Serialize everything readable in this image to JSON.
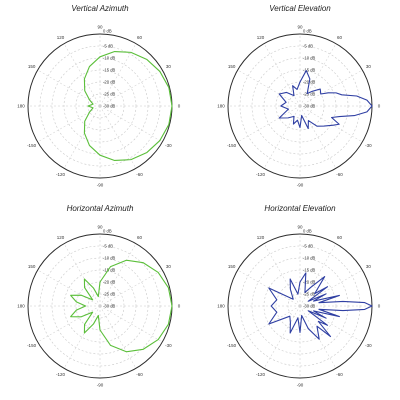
{
  "colors": {
    "azimuth": "#5bbf3a",
    "elevation": "#2f3fa3",
    "grid": "#c8c8c8",
    "outer": "#2a2a2a"
  },
  "ring_labels": [
    "0 dB",
    "-5 dB",
    "-10 dB",
    "-15 dB",
    "-20 dB",
    "-25 dB",
    "-30 dB"
  ],
  "angle_ticks": [
    "0",
    "30",
    "60",
    "90",
    "120",
    "150",
    "180",
    "-150",
    "-120",
    "-90",
    "-60",
    "-30"
  ],
  "chart_data": [
    {
      "type": "polar",
      "title": "Vertical Azimuth",
      "color_key": "azimuth",
      "r_min_db": -30,
      "r_max_db": 0,
      "theta_deg": [
        0,
        15,
        30,
        45,
        60,
        75,
        90,
        105,
        120,
        135,
        150,
        165,
        180,
        -165,
        -150,
        -135,
        -120,
        -105,
        -90,
        -75,
        -60,
        -45,
        -30,
        -15
      ],
      "gain_db": [
        0,
        -0.3,
        -1.2,
        -2.5,
        -4.2,
        -6.5,
        -9.5,
        -13,
        -17,
        -21,
        -25,
        -27,
        -25,
        -27,
        -25,
        -21,
        -17,
        -13,
        -9.5,
        -6.5,
        -4.2,
        -2.5,
        -1.2,
        -0.3
      ]
    },
    {
      "type": "polar",
      "title": "Vertical Elevation",
      "color_key": "elevation",
      "r_min_db": -30,
      "r_max_db": 0,
      "theta_deg": [
        0,
        5,
        10,
        15,
        20,
        25,
        30,
        40,
        50,
        60,
        70,
        80,
        90,
        100,
        110,
        120,
        135,
        150,
        165,
        180,
        -165,
        -150,
        -135,
        -120,
        -110,
        -100,
        -90,
        -80,
        -70,
        -60,
        -50,
        -40,
        -30,
        -25,
        -20,
        -15,
        -10,
        -5
      ],
      "gain_db": [
        0,
        -2,
        -6,
        -12,
        -14,
        -17,
        -20,
        -19,
        -22,
        -24,
        -18,
        -15,
        -20,
        -23,
        -21,
        -25,
        -22,
        -20,
        -24,
        -22,
        -25,
        -20,
        -23,
        -25,
        -22,
        -24,
        -21,
        -26,
        -20,
        -23,
        -19,
        -17,
        -14,
        -12,
        -16,
        -13,
        -7,
        -2
      ]
    },
    {
      "type": "polar",
      "title": "Horizontal Azimuth",
      "color_key": "azimuth",
      "r_min_db": -30,
      "r_max_db": 0,
      "theta_deg": [
        0,
        15,
        30,
        45,
        60,
        75,
        90,
        100,
        110,
        120,
        130,
        140,
        150,
        160,
        170,
        180,
        -170,
        -160,
        -150,
        -140,
        -130,
        -120,
        -110,
        -100,
        -90,
        -75,
        -60,
        -45,
        -30,
        -15
      ],
      "gain_db": [
        0,
        -0.5,
        -2,
        -4.5,
        -8,
        -13,
        -20,
        -26,
        -22,
        -17,
        -20,
        -26,
        -21,
        -17,
        -20,
        -24,
        -20,
        -17,
        -21,
        -26,
        -20,
        -17,
        -22,
        -26,
        -20,
        -13,
        -8,
        -4.5,
        -2,
        -0.5
      ]
    },
    {
      "type": "polar",
      "title": "Horizontal Elevation",
      "color_key": "elevation",
      "r_min_db": -30,
      "r_max_db": 0,
      "theta_deg": [
        0,
        3,
        6,
        10,
        15,
        20,
        25,
        30,
        35,
        40,
        50,
        60,
        70,
        80,
        90,
        100,
        110,
        120,
        135,
        150,
        165,
        180,
        -165,
        -150,
        -135,
        -120,
        -110,
        -100,
        -90,
        -80,
        -70,
        -60,
        -50,
        -45,
        -40,
        -35,
        -30,
        -25,
        -20,
        -15,
        -10,
        -6,
        -3
      ],
      "gain_db": [
        0,
        -3,
        -12,
        -22,
        -13,
        -24,
        -18,
        -26,
        -16,
        -22,
        -14,
        -21,
        -24,
        -16,
        -20,
        -25,
        -18,
        -22,
        -26,
        -15,
        -20,
        -18,
        -20,
        -15,
        -24,
        -22,
        -18,
        -25,
        -19,
        -26,
        -20,
        -14,
        -19,
        -12,
        -20,
        -16,
        -26,
        -18,
        -24,
        -13,
        -22,
        -12,
        -3
      ]
    }
  ]
}
